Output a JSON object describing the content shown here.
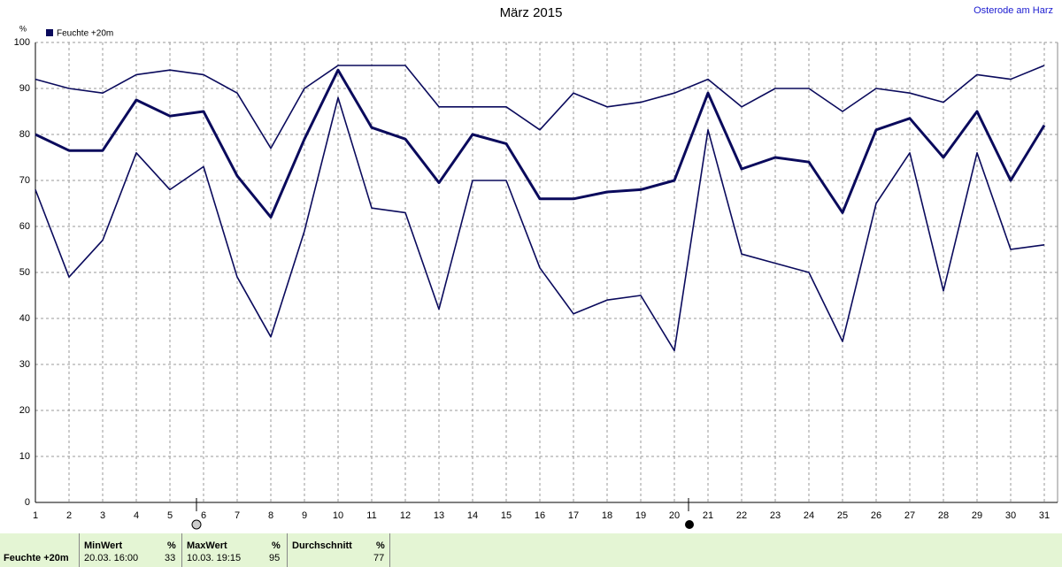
{
  "chart_data": {
    "type": "line",
    "title": "März 2015",
    "location": "Osterode am Harz",
    "y_unit": "%",
    "legend": "Feuchte +20m",
    "x": [
      1,
      2,
      3,
      4,
      5,
      6,
      7,
      8,
      9,
      10,
      11,
      12,
      13,
      14,
      15,
      16,
      17,
      18,
      19,
      20,
      21,
      22,
      23,
      24,
      25,
      26,
      27,
      28,
      29,
      30,
      31
    ],
    "xlim": [
      1,
      31
    ],
    "xticks": [
      1,
      2,
      3,
      4,
      5,
      6,
      7,
      8,
      9,
      10,
      11,
      12,
      13,
      14,
      15,
      16,
      17,
      18,
      19,
      20,
      21,
      22,
      23,
      24,
      25,
      26,
      27,
      28,
      29,
      30,
      31
    ],
    "ylim": [
      0,
      100
    ],
    "yticks": [
      0,
      10,
      20,
      30,
      40,
      50,
      60,
      70,
      80,
      90,
      100
    ],
    "grid": true,
    "series": [
      {
        "color": "#0a0a5c",
        "values": [
          92,
          90,
          89,
          93,
          94,
          93,
          89,
          77,
          90,
          95,
          95,
          95,
          86,
          86,
          86,
          81,
          89,
          86,
          87,
          89,
          92,
          86,
          90,
          90,
          85,
          90,
          89,
          87,
          93,
          92,
          95
        ]
      },
      {
        "color": "#0a0a5c",
        "values": [
          80,
          76.5,
          76.5,
          87.5,
          84,
          85,
          71,
          62,
          79,
          94,
          81.5,
          79,
          69.5,
          80,
          78,
          66,
          66,
          67.5,
          68,
          70,
          89,
          72.5,
          75,
          74,
          63,
          81,
          83.5,
          75,
          85,
          70,
          82
        ]
      },
      {
        "color": "#0a0a5c",
        "values": [
          68,
          49,
          57,
          76,
          68,
          73,
          49,
          36,
          59,
          88,
          64,
          63,
          42,
          70,
          70,
          51,
          41,
          44,
          45,
          33,
          81,
          54,
          52,
          50,
          35,
          65,
          76,
          46,
          76,
          55,
          56
        ]
      }
    ]
  },
  "footer": {
    "row_label": "Feuchte +20m",
    "min_header": "MinWert",
    "min_unit": "%",
    "min_time": "20.03.  16:00",
    "min_value": 33,
    "max_header": "MaxWert",
    "max_unit": "%",
    "max_time": "10.03.  19:15",
    "max_value": 95,
    "avg_header": "Durchschnitt",
    "avg_unit": "%",
    "avg_value": 77
  }
}
